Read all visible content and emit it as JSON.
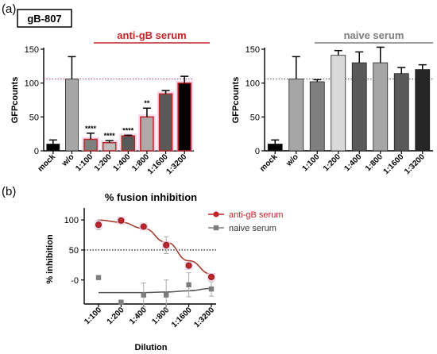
{
  "panel_labels": {
    "a": "(a)",
    "b": "(b)"
  },
  "strain_label": "gB-807",
  "colors": {
    "anti": "#c0252a",
    "naive": "#7d7d7d",
    "axis": "#000000",
    "sig": "#000000"
  },
  "chart_data": [
    {
      "type": "bar",
      "group_title": "anti-gB serum",
      "ylabel": "GFPcounts",
      "ylim": [
        0,
        150
      ],
      "yticks": [
        "0",
        "50",
        "100",
        "150"
      ],
      "reference_line": 106,
      "categories": [
        "mock",
        "w/o",
        "1:100",
        "1:200",
        "1:400",
        "1:800",
        "1:1600",
        "1:3200"
      ],
      "values": [
        10,
        106,
        17,
        12,
        22,
        50,
        84,
        100
      ],
      "errors": [
        6,
        33,
        9,
        3,
        1,
        13,
        5,
        10
      ],
      "bar_fills": [
        "#000000",
        "#a6a6a6",
        "#7f7f7f",
        "#bfbfbf",
        "#595959",
        "#b0a9a9",
        "#595959",
        "#000000"
      ],
      "highlight": [
        false,
        false,
        true,
        true,
        true,
        true,
        true,
        true
      ],
      "significance": [
        "",
        "",
        "****",
        "****",
        "****",
        "**",
        "",
        ""
      ]
    },
    {
      "type": "bar",
      "group_title": "naive serum",
      "ylabel": "GFPcounts",
      "ylim": [
        0,
        150
      ],
      "yticks": [
        "0",
        "50",
        "100",
        "150"
      ],
      "reference_line": 106,
      "categories": [
        "mock",
        "w/o",
        "1:100",
        "1:200",
        "1:400",
        "1:800",
        "1:1600",
        "1:3200"
      ],
      "values": [
        10,
        106,
        102,
        141,
        130,
        130,
        114,
        120
      ],
      "errors": [
        6,
        33,
        3,
        7,
        16,
        23,
        9,
        7
      ],
      "bar_fills": [
        "#000000",
        "#a6a6a6",
        "#7f7f7f",
        "#d9d9d9",
        "#595959",
        "#a6a6a6",
        "#595959",
        "#262626"
      ]
    },
    {
      "type": "line",
      "title": "% fusion inhibition",
      "xlabel": "Dilution",
      "ylabel": "% inhibition",
      "ylim": [
        -40,
        120
      ],
      "yticks": [
        "-0",
        "50",
        "100"
      ],
      "reference_line": 50,
      "categories": [
        "1:100",
        "1:200",
        "1:400",
        "1:800",
        "1:1600",
        "1:3200"
      ],
      "series": [
        {
          "name": "anti-gB serum",
          "values": [
            92,
            99,
            89,
            58,
            24,
            5
          ],
          "errors": [
            8,
            3,
            3,
            14,
            6,
            5
          ],
          "fit": [
            100,
            96,
            86,
            63,
            32,
            10
          ]
        },
        {
          "name": "naive serum",
          "values": [
            4,
            -37,
            -25,
            -25,
            -8,
            -15
          ],
          "errors": [
            3,
            3,
            20,
            25,
            20,
            12
          ],
          "fit": [
            -21,
            -21,
            -21,
            -20,
            -18,
            -14
          ]
        }
      ]
    }
  ]
}
